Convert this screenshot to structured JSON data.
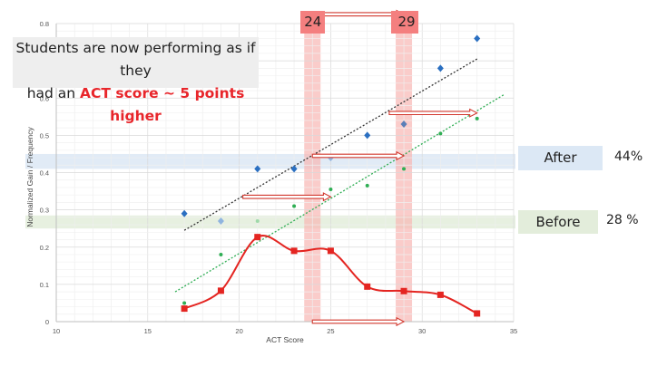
{
  "callout": {
    "line1": "Students are now performing as if they",
    "line2_prefix": "had an ",
    "line2_highlight": "ACT score ~ 5 points higher"
  },
  "markers": [
    "24",
    "29"
  ],
  "after": {
    "label": "After",
    "value": "44%"
  },
  "before": {
    "label": "Before",
    "value": "28 %"
  },
  "colors": {
    "blue": "#2a6fc1",
    "green": "#2fae54",
    "red": "#e42521",
    "after_band": "#dce8f5",
    "before_band": "#e3eddb",
    "marker_band": "#f8b7b4"
  },
  "chart_data": {
    "type": "scatter",
    "xlabel": "ACT Score",
    "ylabel": "Normalized Gain / Frequency",
    "xlim": [
      10,
      35
    ],
    "ylim": [
      0,
      0.8
    ],
    "xticks": [
      10,
      15,
      20,
      25,
      30,
      35
    ],
    "yticks": [
      "0",
      "0.1",
      "0.2",
      "0.3",
      "0.4",
      "0.5",
      "0.6",
      "0.7",
      "0.8"
    ],
    "grid": true,
    "series": [
      {
        "kind": "after-gain-diamonds",
        "x": [
          17,
          19,
          21,
          23,
          25,
          27,
          29,
          31,
          33
        ],
        "y": [
          0.29,
          0.27,
          0.41,
          0.41,
          0.44,
          0.5,
          0.53,
          0.68,
          0.76
        ]
      },
      {
        "kind": "before-gain-dots",
        "x": [
          17,
          19,
          21,
          23,
          25,
          27,
          29,
          31,
          33
        ],
        "y": [
          0.05,
          0.18,
          0.27,
          0.31,
          0.355,
          0.365,
          0.41,
          0.505,
          0.545
        ]
      },
      {
        "kind": "frequency-curve",
        "x": [
          17,
          19,
          21,
          23,
          25,
          27,
          29,
          31,
          33
        ],
        "y": [
          0.035,
          0.083,
          0.227,
          0.19,
          0.19,
          0.094,
          0.082,
          0.072,
          0.022
        ]
      }
    ],
    "trendlines": [
      {
        "kind": "after-trend",
        "x": [
          17,
          33
        ],
        "y": [
          0.245,
          0.705
        ]
      },
      {
        "kind": "before-trend",
        "x": [
          16.5,
          34.5
        ],
        "y": [
          0.08,
          0.61
        ]
      }
    ],
    "arrows": [
      {
        "y": 0.825,
        "x_from": 24.2,
        "x_to": 29.0
      },
      {
        "y": 0.56,
        "x_from": 28.2,
        "x_to": 33.0
      },
      {
        "y": 0.445,
        "x_from": 24.0,
        "x_to": 29.0
      },
      {
        "y": 0.335,
        "x_from": 20.2,
        "x_to": 25.0
      },
      {
        "y": 0.0,
        "x_from": 24.0,
        "x_to": 29.0
      }
    ],
    "bands": {
      "after_y": [
        0.41,
        0.45
      ],
      "before_y": [
        0.25,
        0.285
      ],
      "marker_x": [
        24,
        29
      ]
    }
  }
}
